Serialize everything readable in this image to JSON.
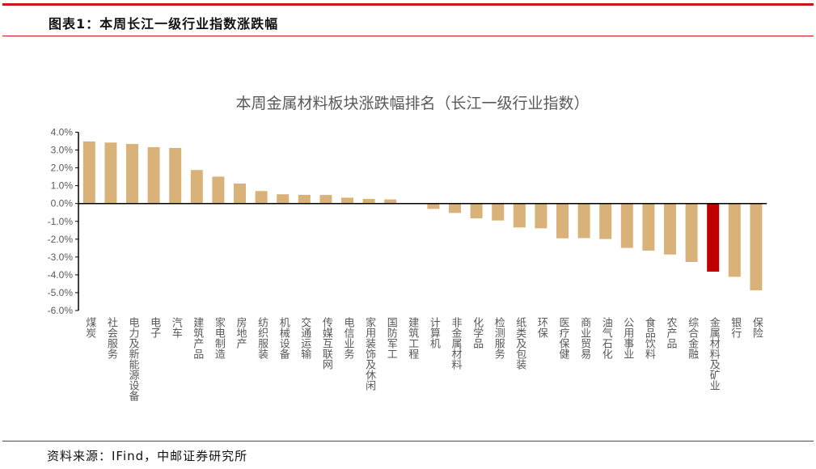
{
  "header": {
    "title": "图表1：本周长江一级行业指数涨跌幅"
  },
  "footer": {
    "source": "资料来源：IFind，中邮证券研究所"
  },
  "colors": {
    "bar": "#d9b27a",
    "highlight": "#c00000",
    "accent_line": "#d0141c"
  },
  "chart_data": {
    "type": "bar",
    "title": "本周金属材料板块涨跌幅排名（长江一级行业指数）",
    "xlabel": "",
    "ylabel": "",
    "ylim": [
      -6.0,
      4.0
    ],
    "yticks": [
      "4.0%",
      "3.0%",
      "2.0%",
      "1.0%",
      "0.0%",
      "-1.0%",
      "-2.0%",
      "-3.0%",
      "-4.0%",
      "-5.0%",
      "-6.0%"
    ],
    "unit": "%",
    "grid": false,
    "highlight_category": "金属材料及矿业",
    "categories": [
      "煤炭",
      "社会服务",
      "电力及新能源设备",
      "电子",
      "汽车",
      "建筑产品",
      "家电制造",
      "房地产",
      "纺织服装",
      "机械设备",
      "交通运输",
      "传媒互联网",
      "电信业务",
      "家用装饰及休闲",
      "国防军工",
      "建筑工程",
      "计算机",
      "非金属材料",
      "化学品",
      "检测服务",
      "纸类及包装",
      "环保",
      "医疗保健",
      "商业贸易",
      "油气石化",
      "公用事业",
      "食品饮料",
      "农产品",
      "综合金融",
      "金属材料及矿业",
      "银行",
      "保险"
    ],
    "values": [
      3.48,
      3.42,
      3.34,
      3.16,
      3.12,
      1.88,
      1.51,
      1.12,
      0.7,
      0.52,
      0.49,
      0.48,
      0.33,
      0.26,
      0.23,
      0.0,
      -0.3,
      -0.53,
      -0.83,
      -0.95,
      -1.34,
      -1.39,
      -1.95,
      -1.94,
      -1.99,
      -2.49,
      -2.64,
      -2.86,
      -3.28,
      -3.82,
      -4.11,
      -4.87
    ]
  }
}
